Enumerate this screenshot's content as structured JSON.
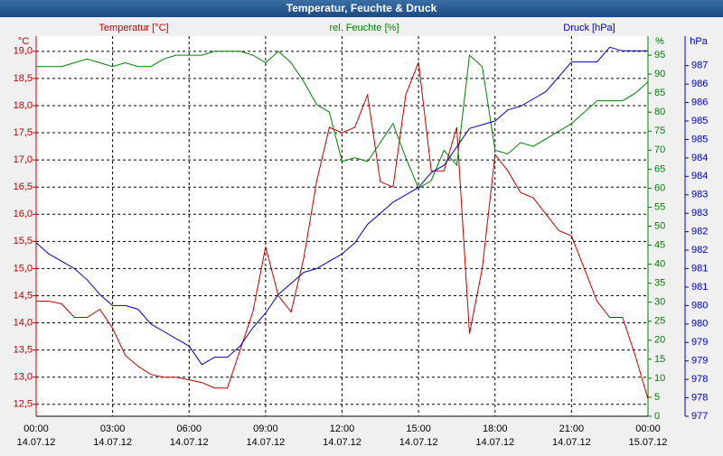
{
  "chart_data": {
    "type": "line",
    "title": "Temperatur, Feuchte & Druck",
    "y_unit": "°C",
    "y2_unit": "%",
    "y3_unit": "hPa",
    "x": [
      0,
      0.5,
      1,
      1.5,
      2,
      2.5,
      3,
      3.5,
      4,
      4.5,
      5,
      5.5,
      6,
      6.5,
      7,
      7.5,
      8,
      8.5,
      9,
      9.5,
      10,
      10.5,
      11,
      11.5,
      12,
      12.5,
      13,
      13.5,
      14,
      14.5,
      15,
      15.5,
      16,
      16.5,
      17,
      17.5,
      18,
      18.5,
      19,
      19.5,
      20,
      20.5,
      21,
      21.5,
      22,
      22.5,
      23,
      23.5,
      24
    ],
    "xlim": [
      0,
      24
    ],
    "xticks": [
      {
        "value": 0,
        "label": "00:00"
      },
      {
        "value": 3,
        "label": "03:00"
      },
      {
        "value": 6,
        "label": "06:00"
      },
      {
        "value": 9,
        "label": "09:00"
      },
      {
        "value": 12,
        "label": "12:00"
      },
      {
        "value": 15,
        "label": "15:00"
      },
      {
        "value": 18,
        "label": "18:00"
      },
      {
        "value": 21,
        "label": "21:00"
      },
      {
        "value": 24,
        "label": "00:00"
      }
    ],
    "xtick_dates": [
      "14.07.12",
      "14.07.12",
      "14.07.12",
      "14.07.12",
      "14.07.12",
      "14.07.12",
      "14.07.12",
      "14.07.12",
      "15.07.12"
    ],
    "ylim": [
      12.28,
      19.28
    ],
    "yticks": [
      {
        "value": 12.5,
        "label": "12,5"
      },
      {
        "value": 13,
        "label": "13,0"
      },
      {
        "value": 13.5,
        "label": "13,5"
      },
      {
        "value": 14,
        "label": "14,0"
      },
      {
        "value": 14.5,
        "label": "14,5"
      },
      {
        "value": 15,
        "label": "15,0"
      },
      {
        "value": 15.5,
        "label": "15,5"
      },
      {
        "value": 16,
        "label": "16,0"
      },
      {
        "value": 16.5,
        "label": "16,5"
      },
      {
        "value": 17,
        "label": "17,0"
      },
      {
        "value": 17.5,
        "label": "17,5"
      },
      {
        "value": 18,
        "label": "18,0"
      },
      {
        "value": 18.5,
        "label": "18,5"
      },
      {
        "value": 19,
        "label": "19,0"
      }
    ],
    "y2lim": [
      0,
      100
    ],
    "y2ticks": [
      0,
      5,
      10,
      15,
      20,
      25,
      30,
      35,
      40,
      45,
      50,
      55,
      60,
      65,
      70,
      75,
      80,
      85,
      90,
      95
    ],
    "y3lim": [
      977,
      987.3
    ],
    "y3ticks": [
      {
        "value": 977,
        "label": "977"
      },
      {
        "value": 977.5,
        "label": "978"
      },
      {
        "value": 978,
        "label": "978"
      },
      {
        "value": 978.5,
        "label": "979"
      },
      {
        "value": 979,
        "label": "979"
      },
      {
        "value": 979.5,
        "label": "980"
      },
      {
        "value": 980,
        "label": "980"
      },
      {
        "value": 980.5,
        "label": "981"
      },
      {
        "value": 981,
        "label": "981"
      },
      {
        "value": 981.5,
        "label": "982"
      },
      {
        "value": 982,
        "label": "982"
      },
      {
        "value": 982.5,
        "label": "983"
      },
      {
        "value": 983,
        "label": "983"
      },
      {
        "value": 983.5,
        "label": "984"
      },
      {
        "value": 984,
        "label": "984"
      },
      {
        "value": 984.5,
        "label": "985"
      },
      {
        "value": 985,
        "label": "985"
      },
      {
        "value": 985.5,
        "label": "986"
      },
      {
        "value": 986,
        "label": "986"
      },
      {
        "value": 986.5,
        "label": "987"
      }
    ],
    "grid": true,
    "series": [
      {
        "name": "Temperatur [°C]",
        "color": "#c00000",
        "axis": "y",
        "values": [
          14.4,
          14.4,
          14.35,
          14.1,
          14.1,
          14.25,
          13.9,
          13.4,
          13.2,
          13.05,
          13.0,
          13.0,
          12.95,
          12.9,
          12.8,
          12.8,
          13.5,
          14.2,
          15.4,
          14.5,
          14.2,
          15.2,
          16.6,
          17.6,
          17.5,
          17.6,
          18.2,
          16.6,
          16.5,
          18.2,
          18.8,
          16.8,
          16.8,
          17.6,
          13.8,
          15.0,
          17.1,
          16.8,
          16.4,
          16.3,
          16.0,
          15.7,
          15.6,
          15.0,
          14.4,
          14.1,
          14.1,
          13.4,
          12.6
        ]
      },
      {
        "name": "rel. Feuchte [%]",
        "color": "#008000",
        "axis": "y2",
        "values": [
          92,
          92,
          92,
          93,
          94,
          93,
          92,
          93,
          92,
          92,
          94,
          95,
          95,
          95,
          96,
          96,
          96,
          95,
          93,
          96,
          93,
          88,
          82,
          80,
          67,
          68,
          67,
          72,
          77,
          68,
          60,
          62,
          70,
          66,
          95,
          92,
          70,
          69,
          72,
          71,
          73,
          75,
          77,
          80,
          83,
          83,
          83,
          85,
          88
        ]
      },
      {
        "name": "Druck [hPa]",
        "color": "#0000c0",
        "axis": "y3",
        "values": [
          981.7,
          981.4,
          981.2,
          981.0,
          980.7,
          980.3,
          980.0,
          980.0,
          979.9,
          979.5,
          979.3,
          979.1,
          978.9,
          978.4,
          978.6,
          978.6,
          978.9,
          979.4,
          979.8,
          980.3,
          980.6,
          980.9,
          981.0,
          981.2,
          981.4,
          981.7,
          982.2,
          982.5,
          982.8,
          983.0,
          983.2,
          983.6,
          983.8,
          984.3,
          984.8,
          984.9,
          985.0,
          985.3,
          985.4,
          985.6,
          985.8,
          986.2,
          986.6,
          986.6,
          986.6,
          987.0,
          986.9,
          986.9,
          986.9
        ]
      }
    ]
  }
}
